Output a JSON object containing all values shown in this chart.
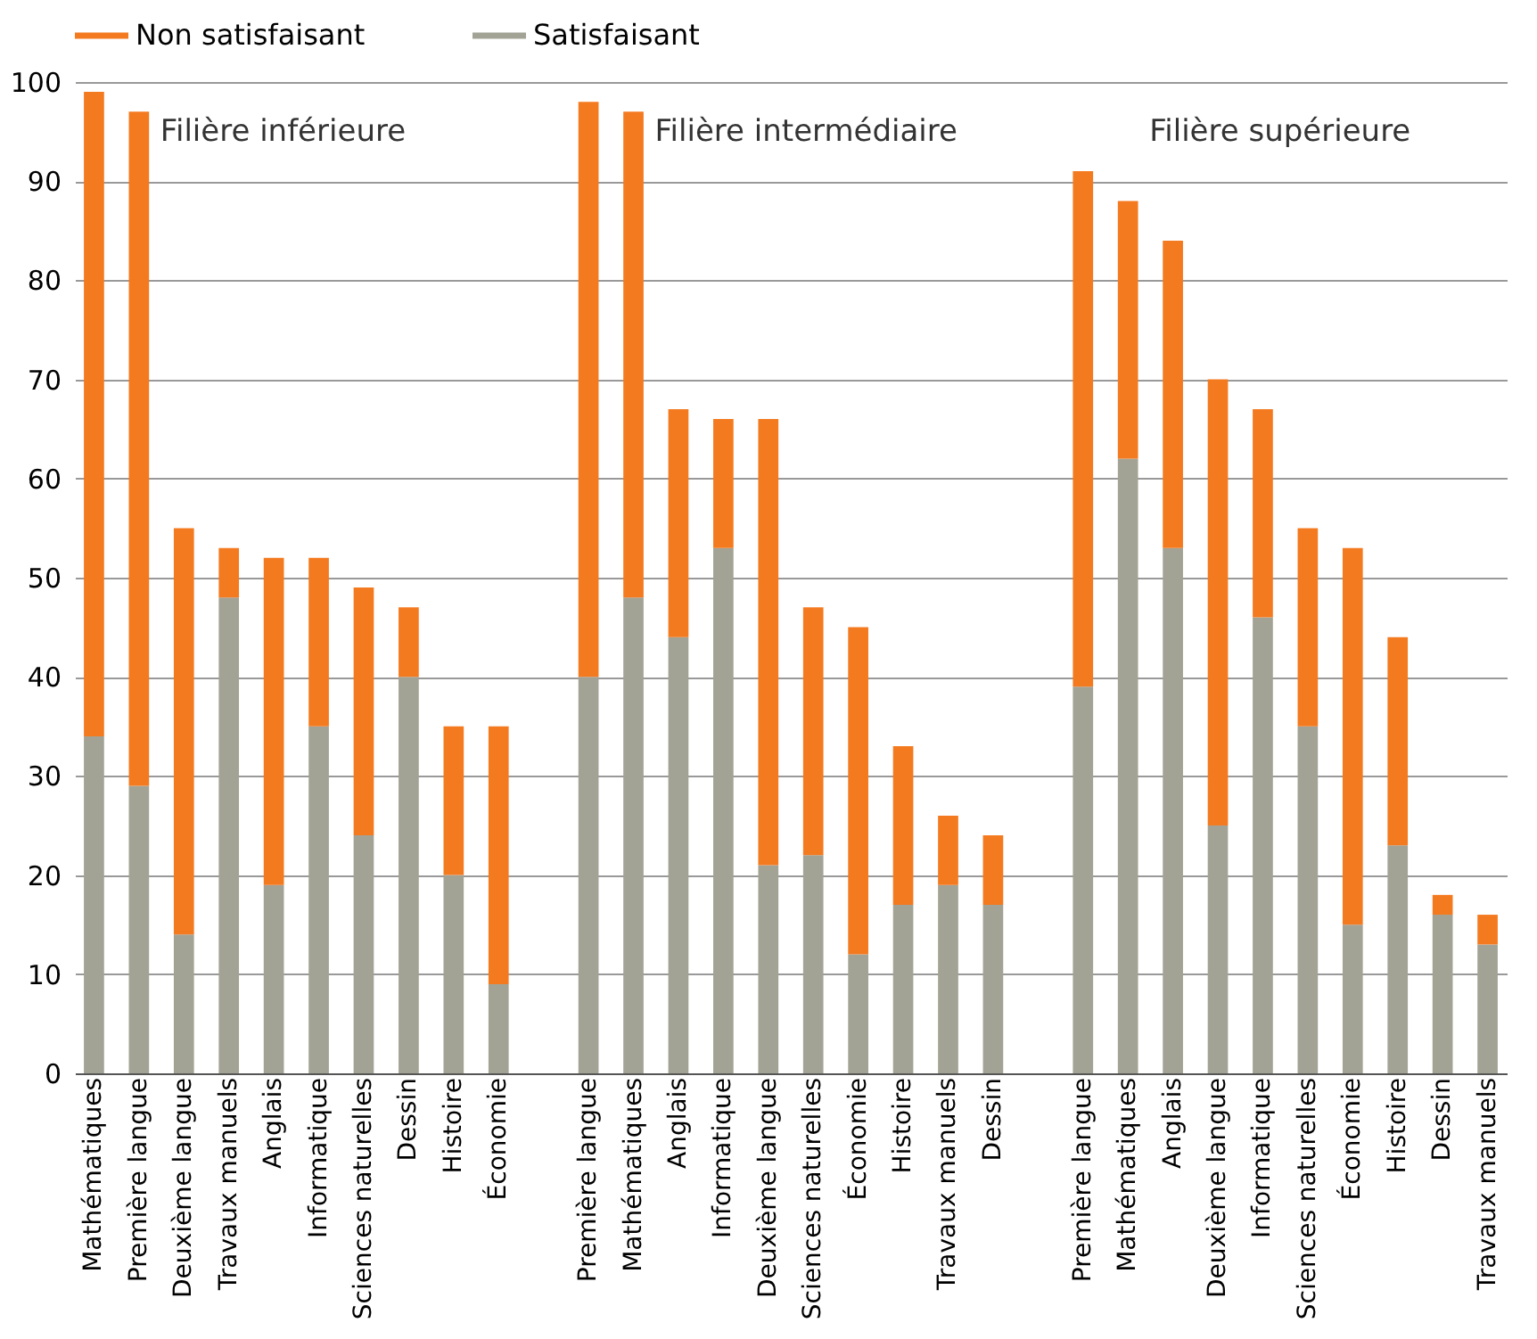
{
  "chart_data": {
    "type": "bar",
    "stacked": true,
    "categories": [
      "Mathématiques",
      "Première langue",
      "Deuxième langue",
      "Travaux manuels",
      "Anglais",
      "Informatique",
      "Sciences naturelles",
      "Dessin",
      "Histoire",
      "Économie",
      null,
      "Première langue",
      "Mathématiques",
      "Anglais",
      "Informatique",
      "Deuxième langue",
      "Sciences naturelles",
      "Économie",
      "Histoire",
      "Travaux manuels",
      "Dessin",
      null,
      "Première langue",
      "Mathématiques",
      "Anglais",
      "Deuxième langue",
      "Informatique",
      "Sciences naturelles",
      "Économie",
      "Histoire",
      "Dessin",
      "Travaux manuels"
    ],
    "series": [
      {
        "name": "Satisfaisant",
        "color": "#a3a395",
        "values": [
          34,
          29,
          14,
          48,
          19,
          35,
          24,
          40,
          20,
          9,
          null,
          40,
          48,
          44,
          53,
          21,
          22,
          12,
          17,
          19,
          17,
          null,
          39,
          62,
          53,
          25,
          46,
          35,
          15,
          23,
          16,
          13
        ]
      },
      {
        "name": "Non satisfaisant",
        "color": "#f47a20",
        "values": [
          65,
          68,
          41,
          5,
          33,
          17,
          25,
          7,
          15,
          26,
          null,
          58,
          49,
          23,
          13,
          45,
          25,
          33,
          16,
          7,
          7,
          null,
          52,
          26,
          31,
          45,
          21,
          20,
          38,
          21,
          2,
          3
        ]
      }
    ],
    "annotations": [
      "Filière inférieure",
      "Filière intermédiaire",
      "Filière supérieure"
    ],
    "ylim": [
      0,
      100
    ],
    "yticks": [
      0,
      10,
      20,
      30,
      40,
      50,
      60,
      70,
      80,
      90,
      100
    ],
    "grid": "y",
    "legend": "top"
  }
}
